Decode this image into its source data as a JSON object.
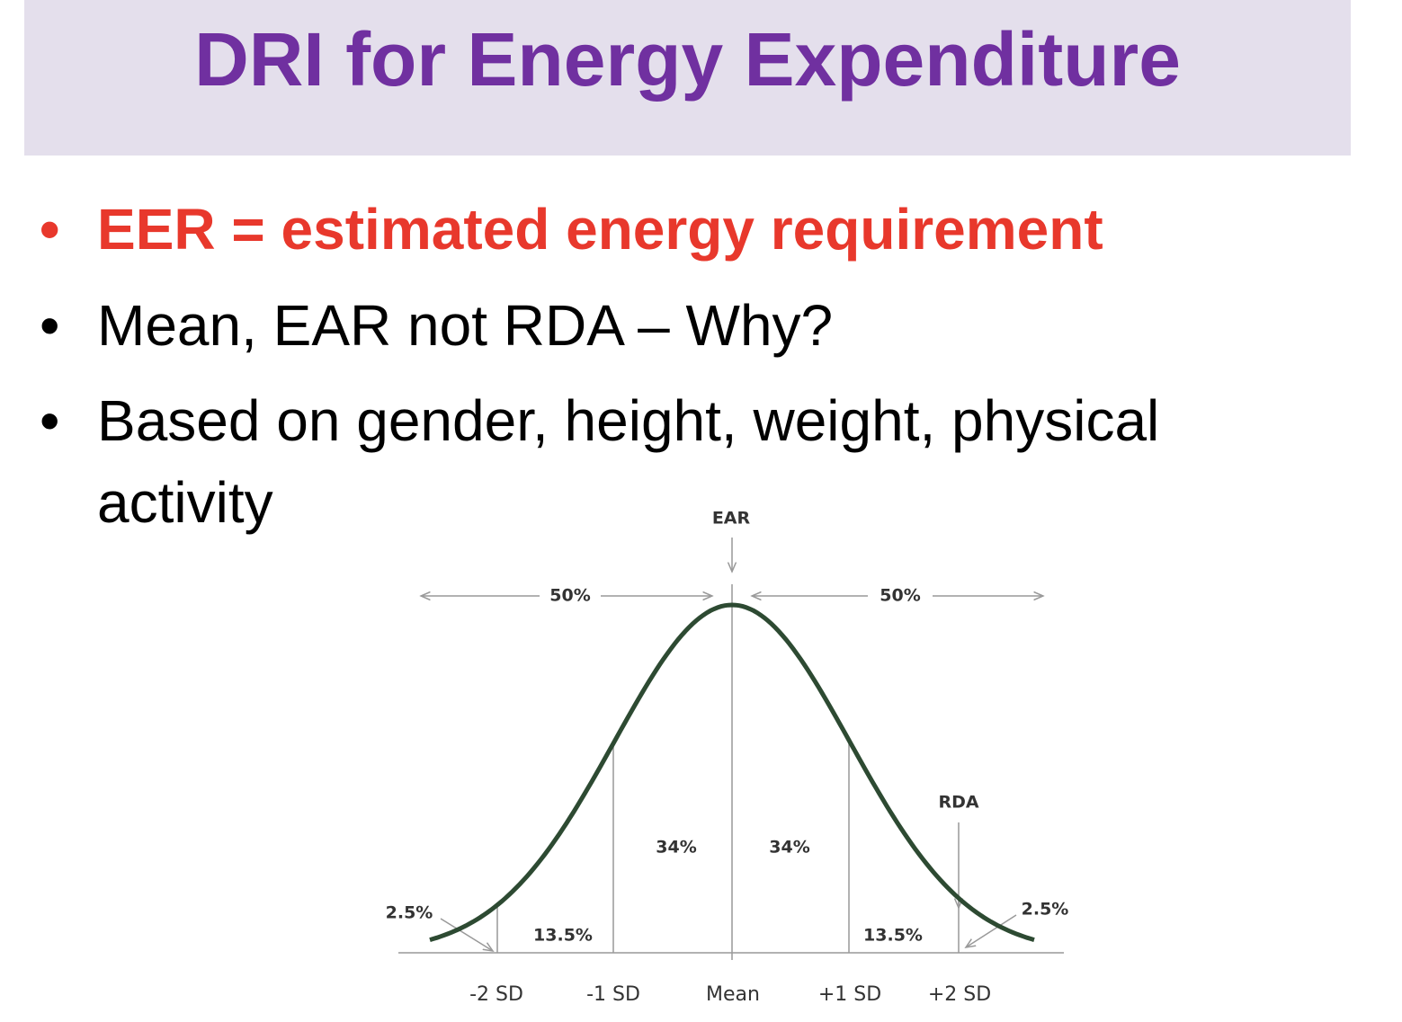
{
  "header": {
    "title": "DRI for Energy Expenditure"
  },
  "bullets": [
    "EER = estimated energy requirement",
    "Mean, EAR not RDA – Why?",
    "Based on gender, height, weight, physical",
    "activity"
  ],
  "figure": {
    "ear": "EAR",
    "rda": "RDA",
    "half_left": "50%",
    "half_right": "50%",
    "inner_left": "34%",
    "inner_right": "34%",
    "mid_left": "13.5%",
    "mid_right": "13.5%",
    "tail_left": "2.5%",
    "tail_right": "2.5%",
    "axis_labels": [
      "-2 SD",
      "-1 SD",
      "Mean",
      "+1 SD",
      "+2 SD"
    ]
  }
}
